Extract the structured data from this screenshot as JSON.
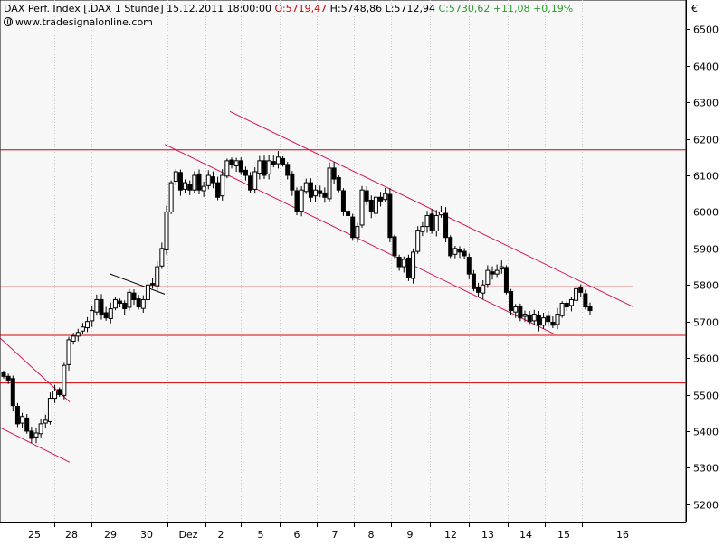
{
  "header": {
    "name": "DAX Perf. Index [.DAX  1 Stunde]",
    "datetime": "15.12.2011 18:00:00",
    "open": "O:5719,47",
    "high": "H:5748,86",
    "low": "L:5712,94",
    "close": "C:5730,62",
    "change": "+11,08",
    "change_pct": "+0,19%",
    "source": "www.tradesignalonline.com",
    "currency": "€"
  },
  "colors": {
    "plot_background": "#f7f7f7",
    "trendline": "#d4145a",
    "horizontal_line": "#d40000",
    "candle_outline": "#000000",
    "up_candle_fill": "#ffffff",
    "down_candle_fill": "#000000"
  },
  "chart_data": {
    "type": "candlestick",
    "title": "DAX Perf. Index [.DAX  1 Stunde]",
    "ylim": [
      5150,
      6580
    ],
    "y_ticks": [
      5200,
      5300,
      5400,
      5500,
      5600,
      5700,
      5800,
      5900,
      6000,
      6100,
      6200,
      6300,
      6400,
      6500
    ],
    "y_tick_labels": [
      "5200",
      "5300",
      "5400",
      "5500",
      "5600",
      "5700",
      "5800",
      "5900",
      "6000",
      "6100",
      "6200",
      "6300",
      "6400",
      "6500"
    ],
    "x_labels": [
      "25",
      "28",
      "29",
      "30",
      "Dez",
      "2",
      "5",
      "6",
      "7",
      "8",
      "9",
      "12",
      "13",
      "14",
      "15",
      "16"
    ],
    "session_separators": [
      "25/28",
      "28/29",
      "29/30",
      "30/Dez",
      "Dez/2",
      "2/5",
      "5/6",
      "6/7",
      "7/8",
      "8/9",
      "9/12",
      "12/13",
      "13/14",
      "14/15",
      "15/16"
    ],
    "grid": false,
    "closes": [
      5550,
      5540,
      5470,
      5420,
      5440,
      5400,
      5380,
      5395,
      5420,
      5430,
      5490,
      5510,
      5500,
      5580,
      5650,
      5660,
      5670,
      5685,
      5700,
      5730,
      5760,
      5720,
      5710,
      5735,
      5760,
      5750,
      5735,
      5780,
      5760,
      5740,
      5760,
      5800,
      5800,
      5850,
      5900,
      6000,
      6080,
      6110,
      6060,
      6080,
      6060,
      6100,
      6060,
      6070,
      6100,
      6080,
      6040,
      6100,
      6140,
      6130,
      6140,
      6110,
      6100,
      6060,
      6110,
      6140,
      6100,
      6140,
      6130,
      6150,
      6130,
      6100,
      6060,
      6000,
      6060,
      6080,
      6040,
      6060,
      6050,
      6040,
      6120,
      6090,
      6060,
      6000,
      5990,
      5930,
      5960,
      6060,
      6030,
      6000,
      6040,
      6030,
      6050,
      5930,
      5880,
      5850,
      5870,
      5820,
      5890,
      5950,
      5960,
      5990,
      5950,
      5990,
      6000,
      5930,
      5880,
      5900,
      5890,
      5880,
      5830,
      5790,
      5780,
      5800,
      5840,
      5830,
      5840,
      5850,
      5780,
      5730,
      5740,
      5710,
      5720,
      5700,
      5720,
      5690,
      5710,
      5700,
      5690,
      5720,
      5750,
      5740,
      5760,
      5790,
      5780,
      5740,
      5730
    ],
    "horizontal_lines": [
      6170,
      5795,
      5662,
      5532
    ],
    "trend_channels": [
      {
        "from": [
          "29",
          5830
        ],
        "to": [
          "30",
          5775
        ]
      },
      {
        "from": [
          "30",
          6185
        ],
        "to": [
          "15",
          5665
        ]
      },
      {
        "from": [
          "2",
          6275
        ],
        "to": [
          "16",
          5740
        ]
      },
      {
        "from": [
          "25",
          5655
        ],
        "to": [
          "28",
          5480
        ]
      },
      {
        "from": [
          "25",
          5410
        ],
        "to": [
          "28",
          5315
        ]
      }
    ]
  }
}
